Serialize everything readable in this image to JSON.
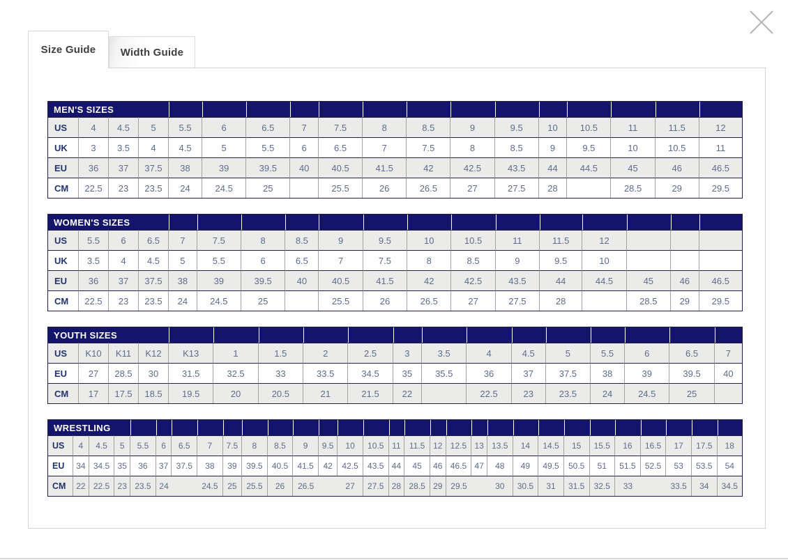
{
  "dialog": {
    "close_icon": "x-close",
    "tabs": [
      {
        "label": "Size Guide",
        "active": true
      },
      {
        "label": "Width Guide",
        "active": false
      }
    ]
  },
  "colors": {
    "header_navy": "#14146a",
    "row_alt_gray": "#ebebe9",
    "label_navy": "#22346d",
    "value_blue_gray": "#5d6c8c",
    "panel_border": "#d4d4d4",
    "close_gray": "#b5b5b5"
  },
  "tables": [
    {
      "id": "mens",
      "title": "MEN'S SIZES",
      "title_colspan": 4,
      "rows": [
        {
          "label": "US",
          "values": [
            "4",
            "4.5",
            "5",
            "5.5",
            "6",
            "6.5",
            "7",
            "7.5",
            "8",
            "8.5",
            "9",
            "9.5",
            "10",
            "10.5",
            "11",
            "11.5",
            "12"
          ]
        },
        {
          "label": "UK",
          "values": [
            "3",
            "3.5",
            "4",
            "4.5",
            "5",
            "5.5",
            "6",
            "6.5",
            "7",
            "7.5",
            "8",
            "8.5",
            "9",
            "9.5",
            "10",
            "10.5",
            "11"
          ]
        },
        {
          "label": "EU",
          "values": [
            "36",
            "37",
            "37.5",
            "38",
            "39",
            "39.5",
            "40",
            "40.5",
            "41.5",
            "42",
            "42.5",
            "43.5",
            "44",
            "44.5",
            "45",
            "46",
            "46.5"
          ]
        },
        {
          "label": "CM",
          "values": [
            "22.5",
            "23",
            "23.5",
            "24",
            "24.5",
            "25",
            "",
            "25.5",
            "26",
            "26.5",
            "27",
            "27.5",
            "28",
            "",
            "28.5",
            "29",
            "29.5"
          ]
        }
      ]
    },
    {
      "id": "womens",
      "title": "WOMEN'S SIZES",
      "title_colspan": 4,
      "rows": [
        {
          "label": "US",
          "values": [
            "5.5",
            "6",
            "6.5",
            "7",
            "7.5",
            "8",
            "8.5",
            "9",
            "9.5",
            "10",
            "10.5",
            "11",
            "11.5",
            "12",
            "",
            "",
            ""
          ]
        },
        {
          "label": "UK",
          "values": [
            "3.5",
            "4",
            "4.5",
            "5",
            "5.5",
            "6",
            "6.5",
            "7",
            "7.5",
            "8",
            "8.5",
            "9",
            "9.5",
            "10",
            "",
            "",
            ""
          ]
        },
        {
          "label": "EU",
          "values": [
            "36",
            "37",
            "37.5",
            "38",
            "39",
            "39.5",
            "40",
            "40.5",
            "41.5",
            "42",
            "42.5",
            "43.5",
            "44",
            "44.5",
            "45",
            "46",
            "46.5"
          ]
        },
        {
          "label": "CM",
          "values": [
            "22.5",
            "23",
            "23.5",
            "24",
            "24.5",
            "25",
            "",
            "25.5",
            "26",
            "26.5",
            "27",
            "27.5",
            "28",
            "",
            "28.5",
            "29",
            "29.5"
          ]
        }
      ]
    },
    {
      "id": "youth",
      "title": "YOUTH SIZES",
      "title_colspan": 4,
      "rows": [
        {
          "label": "US",
          "values": [
            "K10",
            "K11",
            "K12",
            "K13",
            "1",
            "1.5",
            "2",
            "2.5",
            "3",
            "3.5",
            "4",
            "4.5",
            "5",
            "5.5",
            "6",
            "6.5",
            "7"
          ]
        },
        {
          "label": "EU",
          "values": [
            "27",
            "28.5",
            "30",
            "31.5",
            "32.5",
            "33",
            "33.5",
            "34.5",
            "35",
            "35.5",
            "36",
            "37",
            "37.5",
            "38",
            "39",
            "39.5",
            "40"
          ]
        },
        {
          "label": "CM",
          "values": [
            "17",
            "17.5",
            "18.5",
            "19.5",
            "20",
            "20.5",
            "21",
            "21.5",
            "22",
            "",
            "22.5",
            "23",
            "23.5",
            "24",
            "24.5",
            "25",
            ""
          ]
        }
      ]
    },
    {
      "id": "wrestling",
      "title": "WRESTLING",
      "title_colspan": 4,
      "compact": true,
      "rows": [
        {
          "label": "US",
          "values": [
            "4",
            "4.5",
            "5",
            "5.5",
            "6",
            "6.5",
            "7",
            "7.5",
            "8",
            "8.5",
            "9",
            "9.5",
            "10",
            "10.5",
            "11",
            "11.5",
            "12",
            "12.5",
            "13",
            "13.5",
            "14",
            "14.5",
            "15",
            "15.5",
            "16",
            "16.5",
            "17",
            "17.5",
            "18"
          ]
        },
        {
          "label": "EU",
          "values": [
            "34",
            "34.5",
            "35",
            "36",
            "37",
            "37.5",
            "38",
            "39",
            "39.5",
            "40.5",
            "41.5",
            "42",
            "42.5",
            "43.5",
            "44",
            "45",
            "46",
            "46.5",
            "47",
            "48",
            "49",
            "49.5",
            "50.5",
            "51",
            "51.5",
            "52.5",
            "53",
            "53.5",
            "54"
          ]
        },
        {
          "label": "CM",
          "values": [
            "22",
            "22.5",
            "23",
            "23.5",
            "24",
            "",
            "24.5",
            "25",
            "25.5",
            "26",
            "26.5",
            "",
            "27",
            "27.5",
            "28",
            "28.5",
            "29",
            "29.5",
            "",
            "30",
            "30.5",
            "31",
            "31.5",
            "32.5",
            "33",
            "",
            "33.5",
            "34",
            "34.5"
          ]
        }
      ]
    }
  ]
}
